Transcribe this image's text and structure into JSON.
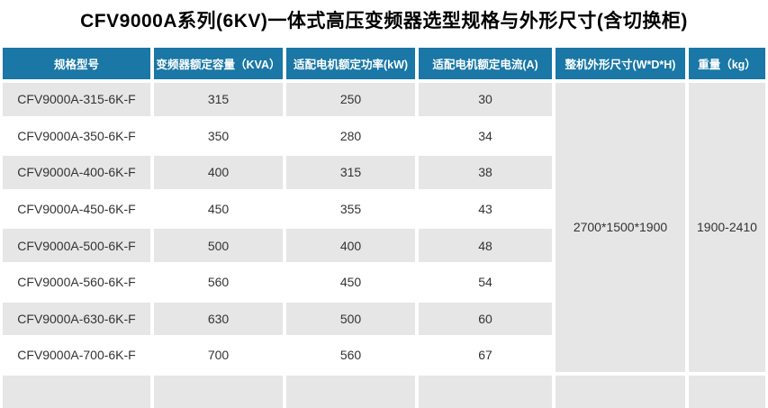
{
  "title": "CFV9000A系列(6KV)一体式高压变频器选型规格与外形尺寸(含切换柜)",
  "colors": {
    "header_bg": "#1a77a6",
    "header_text": "#ffffff",
    "row_alt_bg": "#e6e6e6",
    "body_text": "#333333"
  },
  "table": {
    "headers": [
      "规格型号",
      "变频器额定容量（KVA）",
      "适配电机额定功率(kW)",
      "适配电机额定电流(A)",
      "整机外形尺寸(W*D*H)",
      "重量（kg）"
    ],
    "rows": [
      {
        "model": "CFV9000A-315-6K-F",
        "capacity_kva": "315",
        "power_kw": "250",
        "current_a": "30"
      },
      {
        "model": "CFV9000A-350-6K-F",
        "capacity_kva": "350",
        "power_kw": "280",
        "current_a": "34"
      },
      {
        "model": "CFV9000A-400-6K-F",
        "capacity_kva": "400",
        "power_kw": "315",
        "current_a": "38"
      },
      {
        "model": "CFV9000A-450-6K-F",
        "capacity_kva": "450",
        "power_kw": "355",
        "current_a": "43"
      },
      {
        "model": "CFV9000A-500-6K-F",
        "capacity_kva": "500",
        "power_kw": "400",
        "current_a": "48"
      },
      {
        "model": "CFV9000A-560-6K-F",
        "capacity_kva": "560",
        "power_kw": "450",
        "current_a": "54"
      },
      {
        "model": "CFV9000A-630-6K-F",
        "capacity_kva": "630",
        "power_kw": "500",
        "current_a": "60"
      },
      {
        "model": "CFV9000A-700-6K-F",
        "capacity_kva": "700",
        "power_kw": "560",
        "current_a": "67"
      }
    ],
    "merged": {
      "dimensions_wdh": "2700*1500*1900",
      "weight_kg": "1900-2410"
    }
  }
}
